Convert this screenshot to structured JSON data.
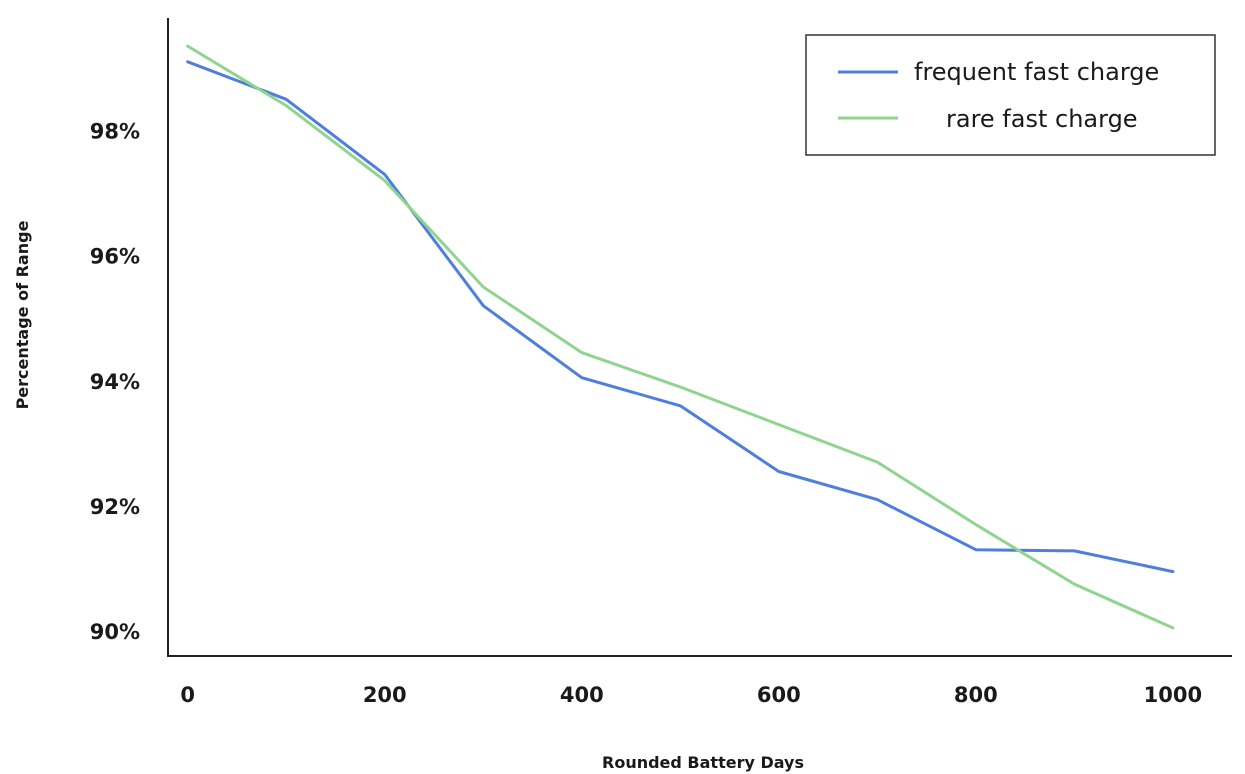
{
  "chart_data": {
    "type": "line",
    "xlabel": "Rounded Battery Days",
    "ylabel": "Percentage of Range",
    "x": [
      0,
      100,
      200,
      300,
      400,
      500,
      600,
      700,
      800,
      900,
      1000
    ],
    "x_ticks": [
      0,
      200,
      400,
      600,
      800,
      1000
    ],
    "x_tick_labels": [
      "0",
      "200",
      "400",
      "600",
      "800",
      "1000"
    ],
    "y_ticks": [
      90,
      92,
      94,
      96,
      98
    ],
    "y_tick_labels": [
      "90%",
      "92%",
      "94%",
      "96%",
      "98%"
    ],
    "xlim": [
      -20,
      1060
    ],
    "ylim": [
      89.6,
      99.8
    ],
    "grid": false,
    "legend_position": "top-right",
    "series": [
      {
        "name": "frequent fast charge",
        "color": "#4f7fdb",
        "values": [
          99.1,
          98.5,
          97.3,
          95.2,
          94.05,
          93.6,
          92.55,
          92.1,
          91.3,
          91.28,
          90.95
        ]
      },
      {
        "name": "rare fast charge",
        "color": "#8fd48f",
        "values": [
          99.35,
          98.4,
          97.2,
          95.5,
          94.45,
          93.9,
          93.3,
          92.7,
          91.7,
          90.75,
          90.05
        ]
      }
    ]
  }
}
